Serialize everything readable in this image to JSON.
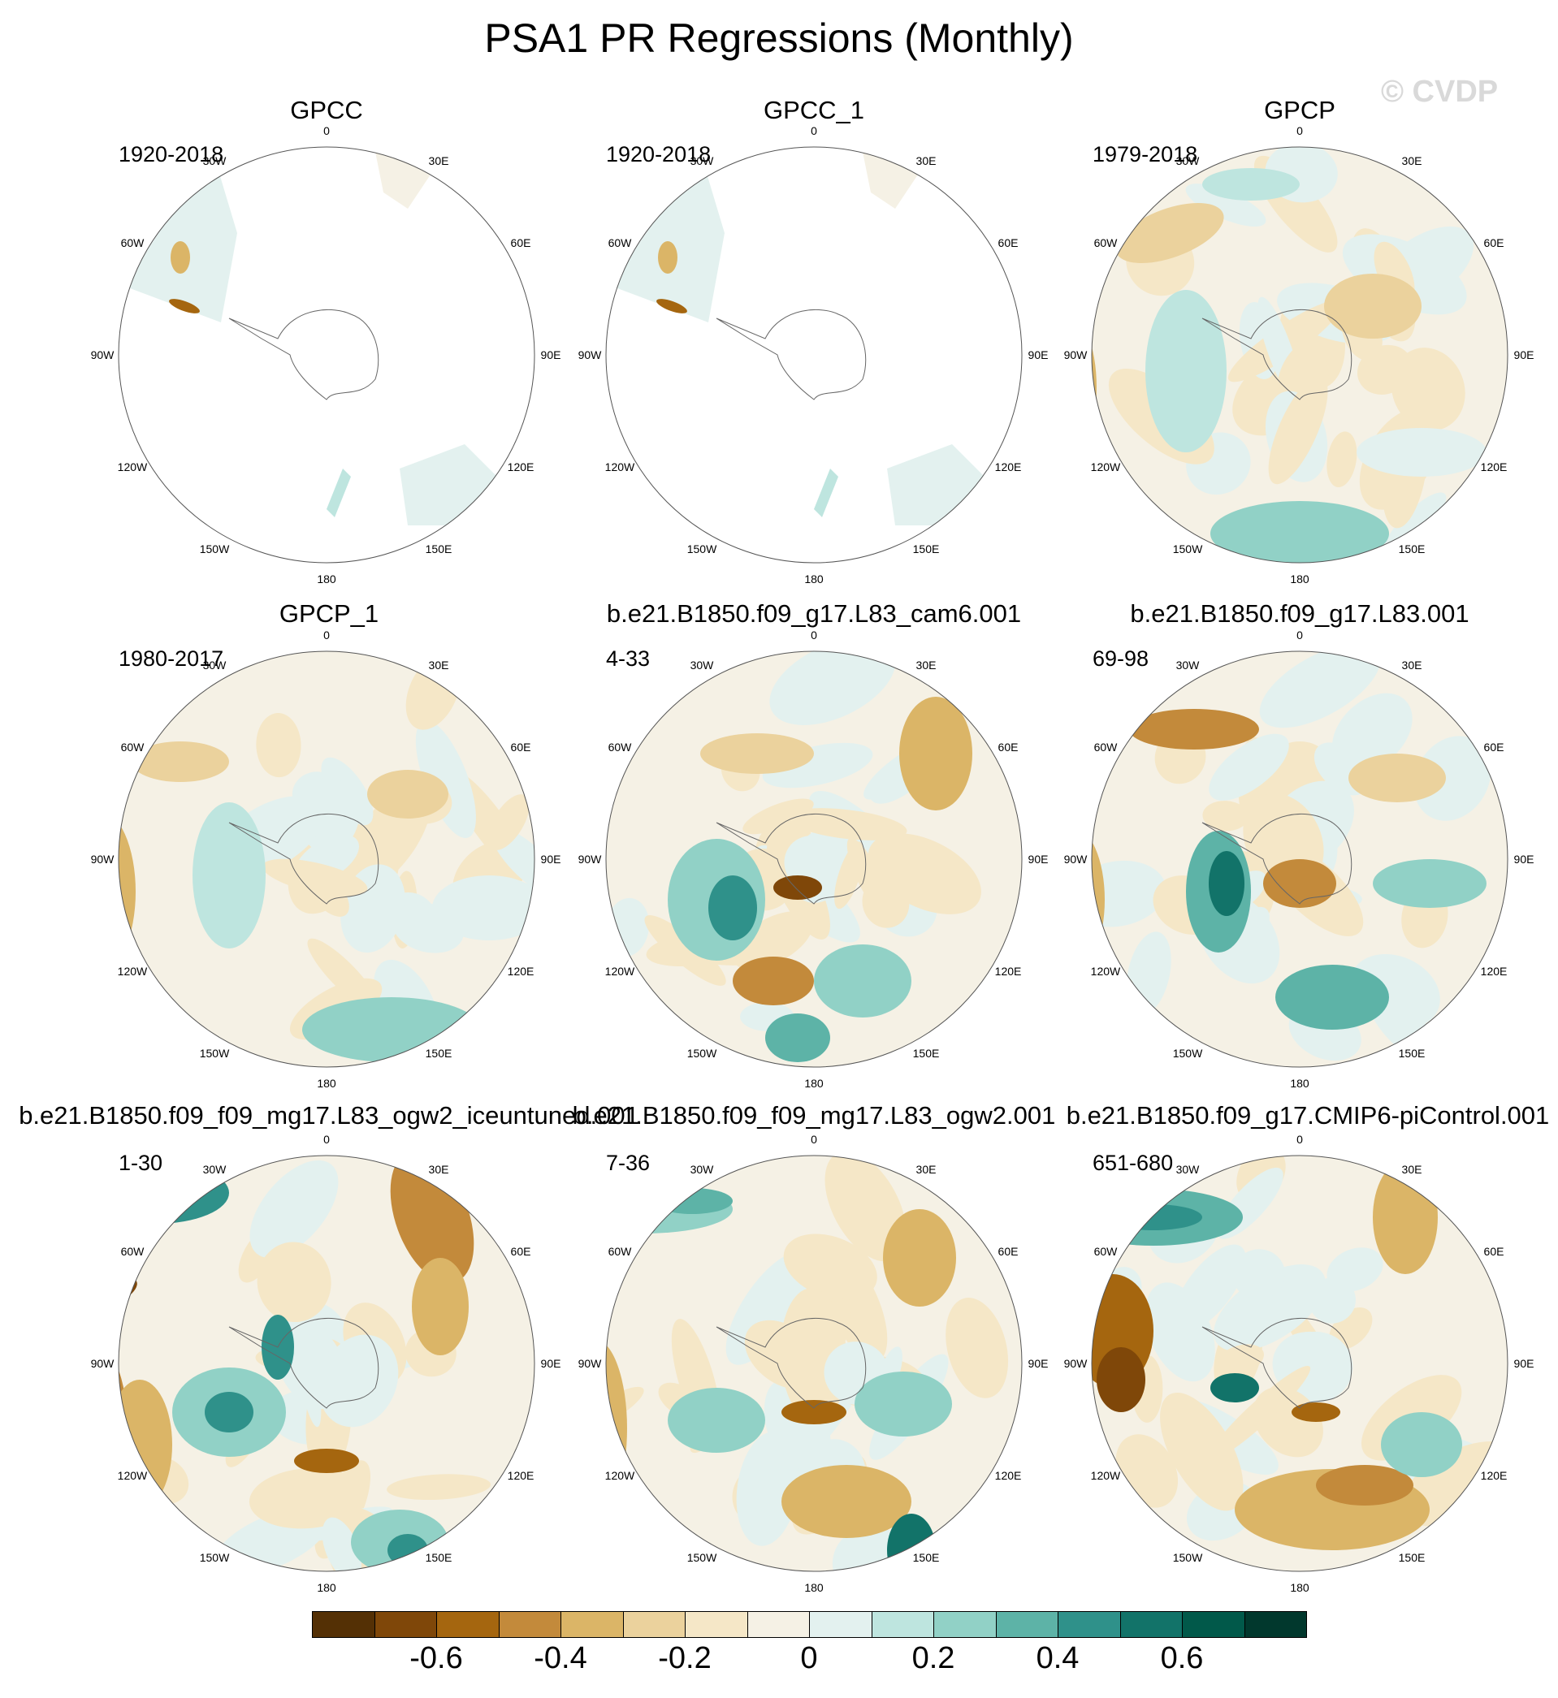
{
  "figure": {
    "title": "PSA1 PR Regressions (Monthly)",
    "copyright": "© CVDP"
  },
  "longitude_labels": [
    {
      "text": "0",
      "deg": 0
    },
    {
      "text": "30E",
      "deg": 30
    },
    {
      "text": "60E",
      "deg": 60
    },
    {
      "text": "90E",
      "deg": 90
    },
    {
      "text": "120E",
      "deg": 120
    },
    {
      "text": "150E",
      "deg": 150
    },
    {
      "text": "180",
      "deg": 180
    },
    {
      "text": "150W",
      "deg": 210
    },
    {
      "text": "120W",
      "deg": 240
    },
    {
      "text": "90W",
      "deg": 270
    },
    {
      "text": "60W",
      "deg": 300
    },
    {
      "text": "30W",
      "deg": 330
    }
  ],
  "panels": [
    {
      "title": "GPCC",
      "years": "1920-2018",
      "coverage": "land"
    },
    {
      "title": "GPCC_1",
      "years": "1920-2018",
      "coverage": "land"
    },
    {
      "title": "GPCP",
      "years": "1979-2018",
      "coverage": "global"
    },
    {
      "title": "GPCP_1",
      "years": "1980-2017",
      "coverage": "global"
    },
    {
      "title": "b.e21.B1850.f09_g17.L83_cam6.001",
      "years": "4-33",
      "coverage": "global"
    },
    {
      "title": "b.e21.B1850.f09_g17.L83.001",
      "years": "69-98",
      "coverage": "global"
    },
    {
      "title": "b.e21.B1850.f09_f09_mg17.L83_ogw2_iceuntuned.001",
      "years": "1-30",
      "coverage": "global"
    },
    {
      "title": "b.e21.B1850.f09_f09_mg17.L83_ogw2.001",
      "years": "7-36",
      "coverage": "global"
    },
    {
      "title": "b.e21.B1850.f09_g17.CMIP6-piControl.001",
      "years": "651-680",
      "coverage": "global"
    }
  ],
  "colorbar": {
    "colors": [
      "#543005",
      "#7f4709",
      "#a5660f",
      "#c38a3b",
      "#dbb567",
      "#ebd29d",
      "#f5e7c7",
      "#f5f1e5",
      "#e3f1ef",
      "#bee5df",
      "#91d1c6",
      "#5db3a7",
      "#2f918a",
      "#127369",
      "#01594a",
      "#01382d"
    ],
    "labels": [
      {
        "text": "-0.6",
        "index": 2
      },
      {
        "text": "-0.4",
        "index": 4
      },
      {
        "text": "-0.2",
        "index": 6
      },
      {
        "text": "0",
        "index": 8
      },
      {
        "text": "0.2",
        "index": 10
      },
      {
        "text": "0.4",
        "index": 12
      },
      {
        "text": "0.6",
        "index": 14
      }
    ]
  }
}
